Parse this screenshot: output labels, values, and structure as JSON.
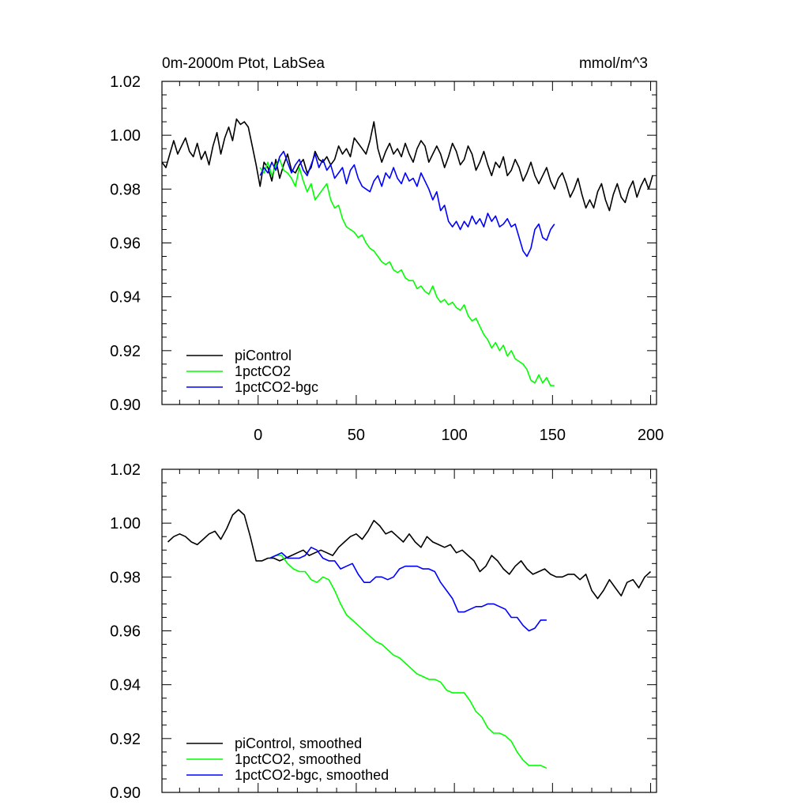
{
  "chart_data": [
    {
      "type": "line",
      "title": "0m-2000m Ptot, LabSea",
      "units": "mmol/m^3",
      "xlim": [
        -49,
        203
      ],
      "ylim": [
        0.9,
        1.02
      ],
      "xticks": [
        0,
        50,
        100,
        150,
        200
      ],
      "xtick_labels": [
        "0",
        "50",
        "100",
        "150",
        "200"
      ],
      "yticks": [
        0.9,
        0.92,
        0.94,
        0.96,
        0.98,
        1.0,
        1.02
      ],
      "ytick_labels": [
        "0.90",
        "0.92",
        "0.94",
        "0.96",
        "0.98",
        "1.00",
        "1.02"
      ],
      "legend_position": "bottom-left",
      "series": [
        {
          "name": "piControl",
          "color": "#000000",
          "x": [
            -49,
            -47,
            -45,
            -43,
            -41,
            -39,
            -37,
            -35,
            -33,
            -31,
            -29,
            -27,
            -25,
            -23,
            -21,
            -19,
            -17,
            -15,
            -13,
            -11,
            -9,
            -7,
            -5,
            -3,
            -1,
            1,
            3,
            5,
            7,
            9,
            11,
            13,
            15,
            17,
            19,
            21,
            23,
            25,
            27,
            29,
            31,
            33,
            35,
            37,
            39,
            41,
            43,
            45,
            47,
            49,
            51,
            53,
            55,
            57,
            59,
            61,
            63,
            65,
            67,
            69,
            71,
            73,
            75,
            77,
            79,
            81,
            83,
            85,
            87,
            89,
            91,
            93,
            95,
            97,
            99,
            101,
            103,
            105,
            107,
            109,
            111,
            113,
            115,
            117,
            119,
            121,
            123,
            125,
            127,
            129,
            131,
            133,
            135,
            137,
            139,
            141,
            143,
            145,
            147,
            149,
            151,
            153,
            155,
            157,
            159,
            161,
            163,
            165,
            167,
            169,
            171,
            173,
            175,
            177,
            179,
            181,
            183,
            185,
            187,
            189,
            191,
            193,
            195,
            197,
            199,
            201
          ],
          "values": [
            0.99,
            0.988,
            0.993,
            0.998,
            0.993,
            0.996,
            0.999,
            0.994,
            0.992,
            0.997,
            0.991,
            0.994,
            0.989,
            0.996,
            1.001,
            0.993,
            0.999,
            1.003,
            0.998,
            1.006,
            1.004,
            1.005,
            1.003,
            0.996,
            0.989,
            0.981,
            0.99,
            0.988,
            0.983,
            0.991,
            0.984,
            0.989,
            0.993,
            0.987,
            0.986,
            0.989,
            0.991,
            0.986,
            0.988,
            0.994,
            0.991,
            0.99,
            0.992,
            0.989,
            0.991,
            0.996,
            0.993,
            0.995,
            0.992,
            0.999,
            0.997,
            0.995,
            0.993,
            0.998,
            1.005,
            0.995,
            0.99,
            0.994,
            0.997,
            0.993,
            0.995,
            0.992,
            0.997,
            0.993,
            0.99,
            0.995,
            0.998,
            0.996,
            0.99,
            0.993,
            0.996,
            0.993,
            0.988,
            0.992,
            0.997,
            0.994,
            0.989,
            0.991,
            0.996,
            0.993,
            0.987,
            0.99,
            0.994,
            0.989,
            0.985,
            0.99,
            0.988,
            0.992,
            0.985,
            0.987,
            0.991,
            0.988,
            0.983,
            0.986,
            0.99,
            0.985,
            0.982,
            0.985,
            0.988,
            0.983,
            0.98,
            0.984,
            0.986,
            0.982,
            0.977,
            0.98,
            0.984,
            0.978,
            0.973,
            0.976,
            0.973,
            0.979,
            0.982,
            0.976,
            0.972,
            0.978,
            0.982,
            0.977,
            0.975,
            0.98,
            0.983,
            0.977,
            0.981,
            0.984,
            0.98,
            0.985
          ]
        },
        {
          "name": "1pctCO2",
          "color": "#00ff00",
          "x": [
            1,
            3,
            5,
            7,
            9,
            11,
            13,
            15,
            17,
            19,
            21,
            23,
            25,
            27,
            29,
            31,
            33,
            35,
            37,
            39,
            41,
            43,
            45,
            47,
            49,
            51,
            53,
            55,
            57,
            59,
            61,
            63,
            65,
            67,
            69,
            71,
            73,
            75,
            77,
            79,
            81,
            83,
            85,
            87,
            89,
            91,
            93,
            95,
            97,
            99,
            101,
            103,
            105,
            107,
            109,
            111,
            113,
            115,
            117,
            119,
            121,
            123,
            125,
            127,
            129,
            131,
            133,
            135,
            137,
            139,
            141,
            143,
            145,
            147,
            149,
            151
          ],
          "values": [
            0.988,
            0.986,
            0.99,
            0.985,
            0.989,
            0.991,
            0.987,
            0.986,
            0.984,
            0.981,
            0.988,
            0.983,
            0.979,
            0.982,
            0.976,
            0.978,
            0.98,
            0.982,
            0.976,
            0.973,
            0.974,
            0.969,
            0.966,
            0.965,
            0.964,
            0.962,
            0.963,
            0.96,
            0.958,
            0.957,
            0.955,
            0.953,
            0.952,
            0.953,
            0.95,
            0.949,
            0.95,
            0.947,
            0.946,
            0.946,
            0.943,
            0.944,
            0.942,
            0.941,
            0.944,
            0.94,
            0.938,
            0.939,
            0.937,
            0.938,
            0.936,
            0.935,
            0.937,
            0.933,
            0.931,
            0.932,
            0.929,
            0.926,
            0.924,
            0.921,
            0.923,
            0.92,
            0.922,
            0.918,
            0.92,
            0.917,
            0.916,
            0.915,
            0.913,
            0.909,
            0.908,
            0.911,
            0.908,
            0.91,
            0.907,
            0.907
          ]
        },
        {
          "name": "1pctCO2-bgc",
          "color": "#0000ff",
          "x": [
            1,
            3,
            5,
            7,
            9,
            11,
            13,
            15,
            17,
            19,
            21,
            23,
            25,
            27,
            29,
            31,
            33,
            35,
            37,
            39,
            41,
            43,
            45,
            47,
            49,
            51,
            53,
            55,
            57,
            59,
            61,
            63,
            65,
            67,
            69,
            71,
            73,
            75,
            77,
            79,
            81,
            83,
            85,
            87,
            89,
            91,
            93,
            95,
            97,
            99,
            101,
            103,
            105,
            107,
            109,
            111,
            113,
            115,
            117,
            119,
            121,
            123,
            125,
            127,
            129,
            131,
            133,
            135,
            137,
            139,
            141,
            143,
            145,
            147,
            149,
            151
          ],
          "values": [
            0.985,
            0.988,
            0.986,
            0.99,
            0.987,
            0.992,
            0.994,
            0.99,
            0.986,
            0.989,
            0.991,
            0.987,
            0.985,
            0.989,
            0.993,
            0.988,
            0.991,
            0.987,
            0.989,
            0.984,
            0.986,
            0.988,
            0.982,
            0.987,
            0.989,
            0.984,
            0.981,
            0.98,
            0.979,
            0.983,
            0.985,
            0.981,
            0.986,
            0.984,
            0.988,
            0.984,
            0.982,
            0.986,
            0.983,
            0.984,
            0.981,
            0.986,
            0.983,
            0.98,
            0.976,
            0.979,
            0.972,
            0.974,
            0.968,
            0.966,
            0.968,
            0.965,
            0.968,
            0.966,
            0.97,
            0.967,
            0.969,
            0.966,
            0.971,
            0.968,
            0.97,
            0.966,
            0.967,
            0.969,
            0.966,
            0.967,
            0.962,
            0.957,
            0.955,
            0.958,
            0.965,
            0.967,
            0.962,
            0.961,
            0.965,
            0.967
          ]
        }
      ]
    },
    {
      "type": "line",
      "xlim": [
        -49,
        203
      ],
      "ylim": [
        0.9,
        1.02
      ],
      "xticks": [
        0,
        50,
        100,
        150,
        200
      ],
      "yticks": [
        0.9,
        0.92,
        0.94,
        0.96,
        0.98,
        1.0,
        1.02
      ],
      "ytick_labels": [
        "0.90",
        "0.92",
        "0.94",
        "0.96",
        "0.98",
        "1.00",
        "1.02"
      ],
      "legend_position": "bottom-left",
      "series": [
        {
          "name": "piControl, smoothed",
          "color": "#000000",
          "x": [
            -46,
            -43,
            -40,
            -37,
            -34,
            -31,
            -28,
            -25,
            -22,
            -19,
            -16,
            -13,
            -10,
            -7,
            -4,
            -1,
            2,
            5,
            8,
            11,
            14,
            17,
            20,
            23,
            26,
            29,
            32,
            35,
            38,
            41,
            44,
            47,
            50,
            53,
            56,
            59,
            62,
            65,
            68,
            71,
            74,
            77,
            80,
            83,
            86,
            89,
            92,
            95,
            98,
            101,
            104,
            107,
            110,
            113,
            116,
            119,
            122,
            125,
            128,
            131,
            134,
            137,
            140,
            143,
            146,
            149,
            152,
            155,
            158,
            161,
            164,
            167,
            170,
            173,
            176,
            179,
            182,
            185,
            188,
            191,
            194,
            197,
            200
          ],
          "values": [
            0.993,
            0.995,
            0.996,
            0.995,
            0.993,
            0.992,
            0.994,
            0.996,
            0.997,
            0.994,
            0.998,
            1.003,
            1.005,
            1.003,
            0.995,
            0.986,
            0.986,
            0.987,
            0.987,
            0.986,
            0.987,
            0.988,
            0.989,
            0.99,
            0.988,
            0.989,
            0.99,
            0.989,
            0.988,
            0.991,
            0.993,
            0.995,
            0.996,
            0.994,
            0.997,
            1.001,
            0.999,
            0.996,
            0.997,
            0.995,
            0.993,
            0.996,
            0.993,
            0.991,
            0.995,
            0.993,
            0.992,
            0.991,
            0.992,
            0.989,
            0.99,
            0.988,
            0.986,
            0.982,
            0.984,
            0.988,
            0.986,
            0.983,
            0.981,
            0.984,
            0.986,
            0.983,
            0.981,
            0.982,
            0.983,
            0.981,
            0.98,
            0.98,
            0.981,
            0.981,
            0.979,
            0.981,
            0.975,
            0.972,
            0.975,
            0.979,
            0.976,
            0.973,
            0.978,
            0.979,
            0.976,
            0.98,
            0.982
          ]
        },
        {
          "name": "1pctCO2, smoothed",
          "color": "#00ff00",
          "x": [
            6,
            9,
            12,
            15,
            18,
            21,
            24,
            27,
            30,
            33,
            36,
            39,
            42,
            45,
            48,
            51,
            54,
            57,
            60,
            63,
            66,
            69,
            72,
            75,
            78,
            81,
            84,
            87,
            90,
            93,
            96,
            99,
            102,
            105,
            108,
            111,
            114,
            117,
            120,
            123,
            126,
            129,
            132,
            135,
            138,
            141,
            144,
            147
          ],
          "values": [
            0.987,
            0.988,
            0.988,
            0.985,
            0.983,
            0.982,
            0.982,
            0.979,
            0.978,
            0.98,
            0.979,
            0.975,
            0.97,
            0.966,
            0.964,
            0.962,
            0.96,
            0.958,
            0.956,
            0.955,
            0.953,
            0.951,
            0.95,
            0.948,
            0.946,
            0.944,
            0.943,
            0.942,
            0.942,
            0.941,
            0.938,
            0.937,
            0.937,
            0.937,
            0.934,
            0.93,
            0.928,
            0.924,
            0.922,
            0.922,
            0.921,
            0.919,
            0.915,
            0.912,
            0.91,
            0.91,
            0.91,
            0.909
          ]
        },
        {
          "name": "1pctCO2-bgc, smoothed",
          "color": "#0000ff",
          "x": [
            6,
            9,
            12,
            15,
            18,
            21,
            24,
            27,
            30,
            33,
            36,
            39,
            42,
            45,
            48,
            51,
            54,
            57,
            60,
            63,
            66,
            69,
            72,
            75,
            78,
            81,
            84,
            87,
            90,
            93,
            96,
            99,
            102,
            105,
            108,
            111,
            114,
            117,
            120,
            123,
            126,
            129,
            132,
            135,
            138,
            141,
            144,
            147
          ],
          "values": [
            0.987,
            0.988,
            0.989,
            0.987,
            0.987,
            0.987,
            0.988,
            0.991,
            0.99,
            0.987,
            0.986,
            0.986,
            0.983,
            0.984,
            0.985,
            0.981,
            0.978,
            0.978,
            0.98,
            0.98,
            0.979,
            0.98,
            0.983,
            0.984,
            0.984,
            0.984,
            0.983,
            0.983,
            0.982,
            0.978,
            0.975,
            0.972,
            0.967,
            0.967,
            0.968,
            0.969,
            0.969,
            0.97,
            0.97,
            0.969,
            0.968,
            0.965,
            0.965,
            0.962,
            0.96,
            0.961,
            0.964,
            0.964
          ]
        }
      ]
    }
  ]
}
